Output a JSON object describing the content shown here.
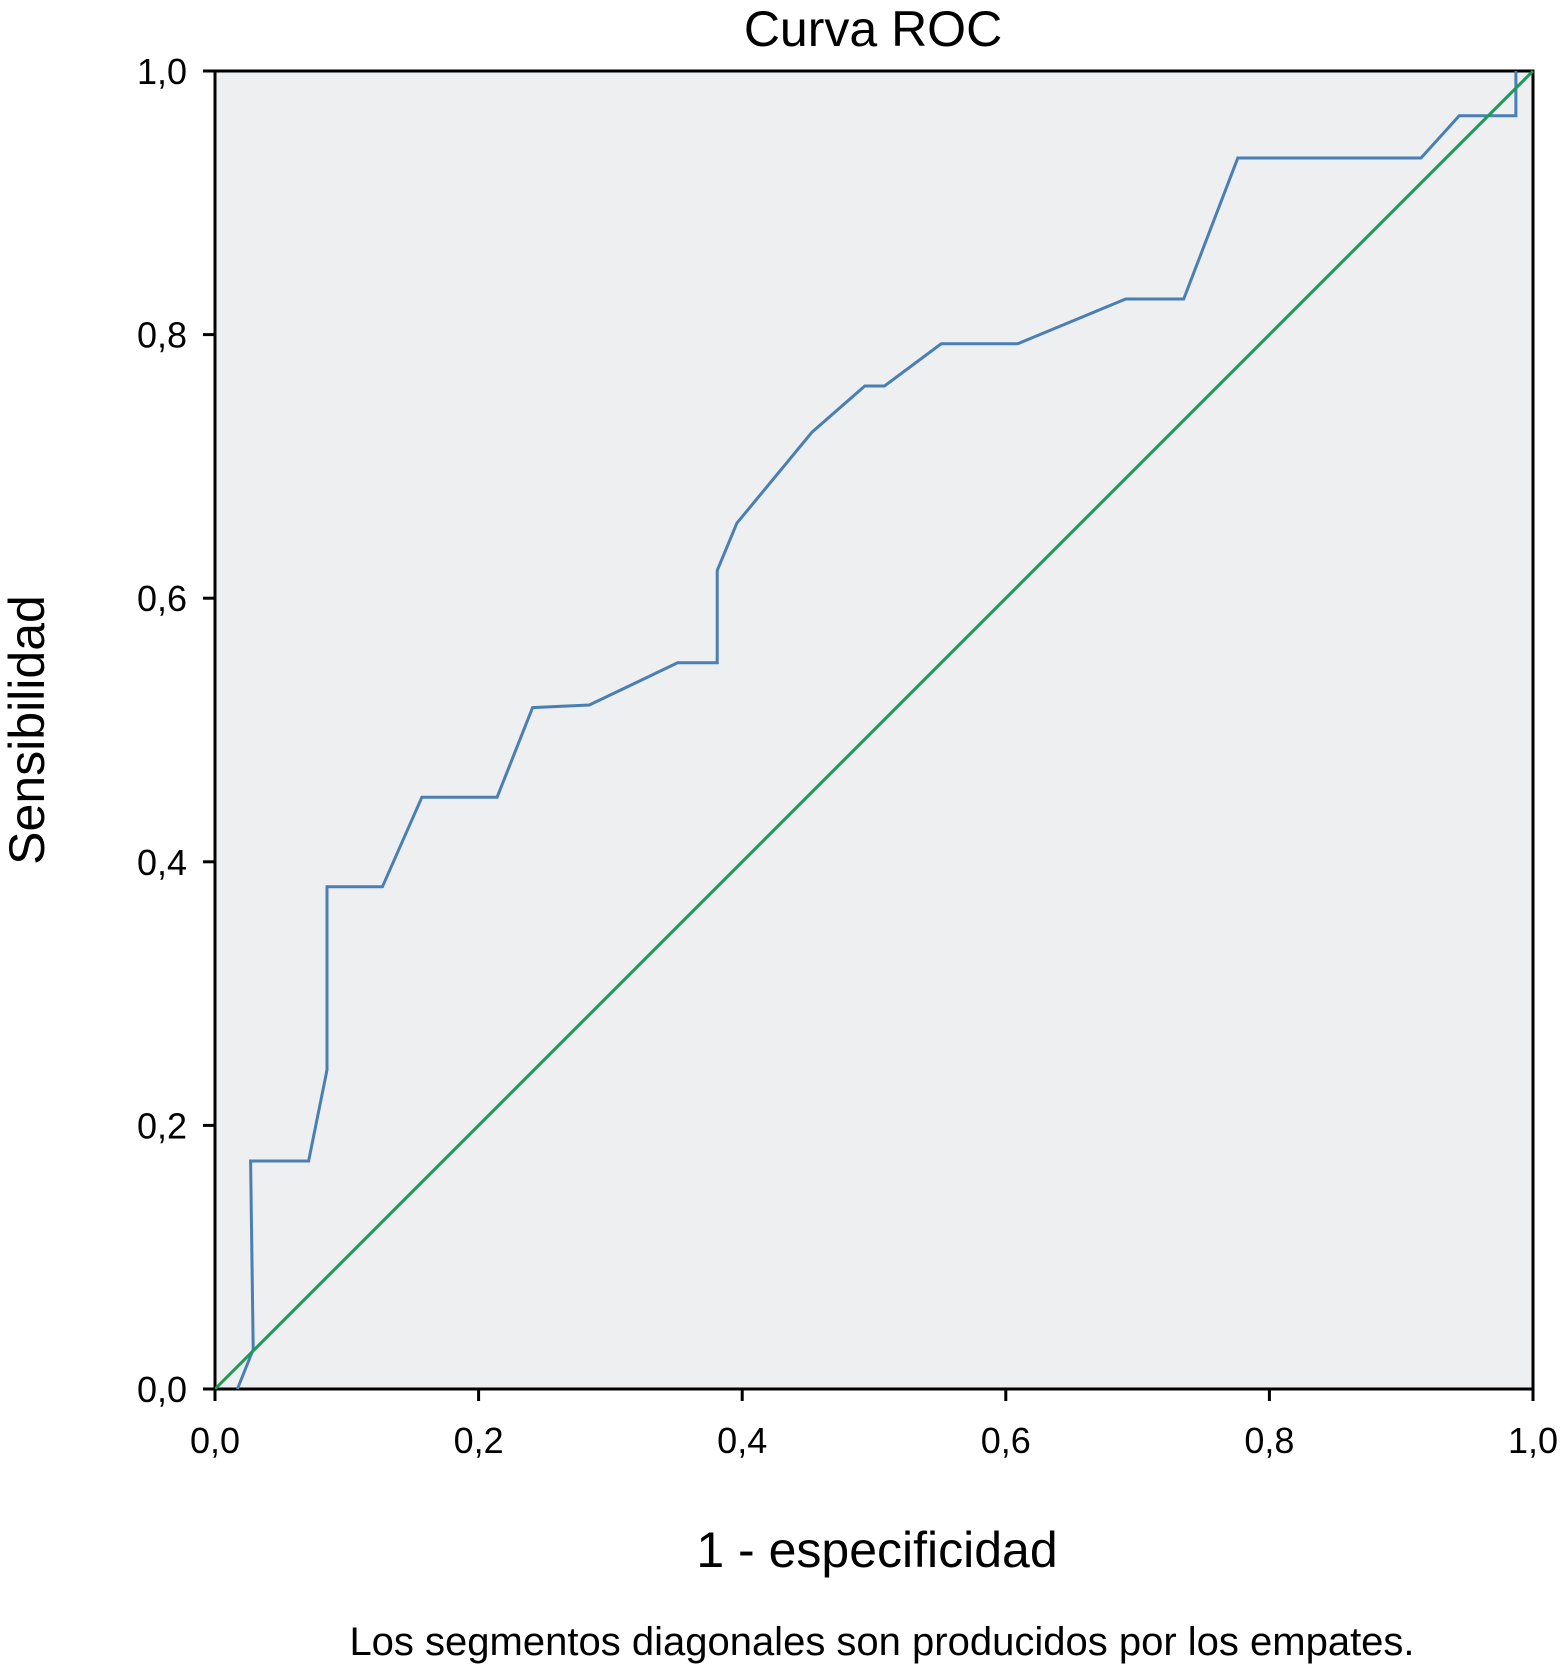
{
  "chart_data": {
    "type": "line",
    "title": "Curva ROC",
    "xlabel": "1 - especificidad",
    "ylabel": "Sensibilidad",
    "footnote": "Los segmentos diagonales son producidos por los empates.",
    "xlim": [
      0,
      1
    ],
    "ylim": [
      0,
      1
    ],
    "x_ticks": [
      0,
      0.2,
      0.4,
      0.6,
      0.8,
      1.0
    ],
    "x_tick_labels": [
      "0,0",
      "0,2",
      "0,4",
      "0,6",
      "0,8",
      "1,0"
    ],
    "y_ticks": [
      0,
      0.2,
      0.4,
      0.6,
      0.8,
      1.0
    ],
    "y_tick_labels": [
      "0,0",
      "0,2",
      "0,4",
      "0,6",
      "0,8",
      "1,0"
    ],
    "grid": false,
    "plot_background": "#edeff1",
    "series": [
      {
        "color": "#4a7fb5",
        "x": [
          0.017,
          0.029,
          0.027,
          0.071,
          0.085,
          0.085,
          0.127,
          0.157,
          0.214,
          0.241,
          0.284,
          0.351,
          0.381,
          0.381,
          0.396,
          0.453,
          0.493,
          0.508,
          0.551,
          0.609,
          0.691,
          0.735,
          0.776,
          0.915,
          0.944,
          0.987,
          0.987
        ],
        "y": [
          0.0,
          0.03,
          0.173,
          0.173,
          0.242,
          0.381,
          0.381,
          0.449,
          0.449,
          0.517,
          0.519,
          0.551,
          0.551,
          0.621,
          0.657,
          0.726,
          0.761,
          0.761,
          0.793,
          0.793,
          0.827,
          0.827,
          0.934,
          0.934,
          0.966,
          0.966,
          1.0
        ]
      },
      {
        "color": "#1a9b50",
        "x": [
          0,
          1
        ],
        "y": [
          0,
          1
        ]
      }
    ]
  }
}
